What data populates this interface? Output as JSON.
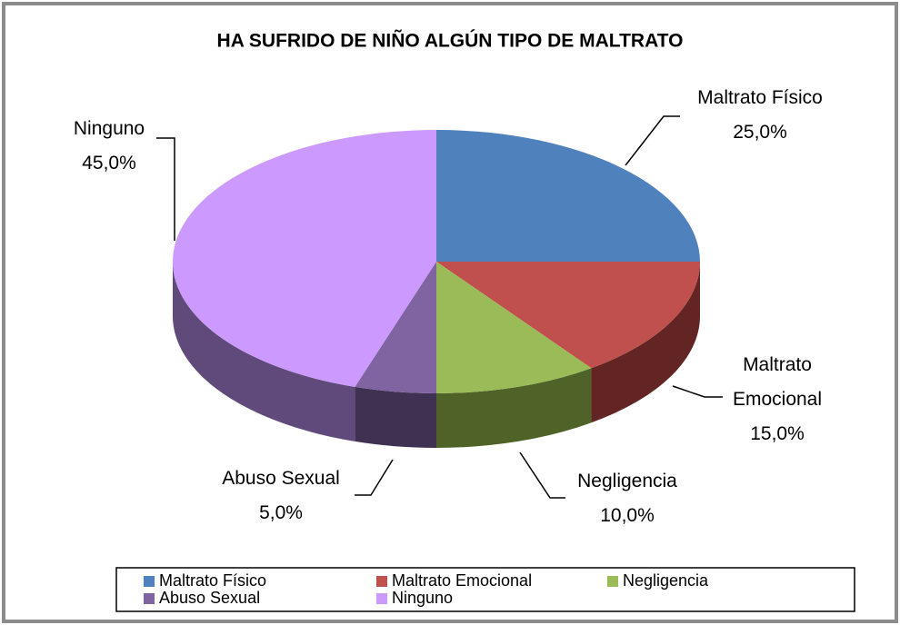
{
  "chart_data": {
    "type": "pie",
    "title": "HA SUFRIDO DE NIÑO ALGÚN TIPO DE MALTRATO",
    "categories": [
      "Maltrato Físico",
      "Maltrato Emocional",
      "Negligencia",
      "Abuso Sexual",
      "Ninguno"
    ],
    "values": [
      25,
      15,
      10,
      5,
      45
    ],
    "value_labels": [
      "25,0%",
      "15,0%",
      "10,0%",
      "5,0%",
      "45,0%"
    ],
    "colors": [
      "#4f81bd",
      "#c0504d",
      "#9bbb59",
      "#8064a2",
      "#cc99ff"
    ],
    "side_colors": [
      "#385d8a",
      "#632523",
      "#4f6228",
      "#3f3151",
      "#604a7b"
    ],
    "legend": "bottom"
  }
}
